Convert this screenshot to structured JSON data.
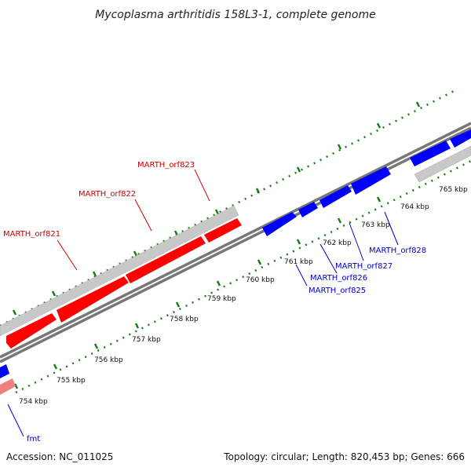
{
  "title": "Mycoplasma arthritidis 158L3-1, complete genome",
  "footer": {
    "accession": "Accession: NC_011025",
    "summary": "Topology: circular; Length: 820,453 bp; Genes: 666"
  },
  "colors": {
    "backbone": "#777777",
    "ticks": "#1a7a1a",
    "gene_red": "#ff0000",
    "gene_blue": "#0000ff",
    "gene_gray": "#c8c8c8",
    "gene_pink": "#f08080",
    "label_red": "#cc0000",
    "label_blue": "#0000cc"
  },
  "kbp_labels": [
    "754 kbp",
    "755 kbp",
    "756 kbp",
    "757 kbp",
    "758 kbp",
    "759 kbp",
    "760 kbp",
    "761 kbp",
    "762 kbp",
    "763 kbp",
    "764 kbp",
    "765 kbp"
  ],
  "gene_labels": {
    "orf821": "MARTH_orf821",
    "orf822": "MARTH_orf822",
    "orf823": "MARTH_orf823",
    "orf825": "MARTH_orf825",
    "orf826": "MARTH_orf826",
    "orf827": "MARTH_orf827",
    "orf828": "MARTH_orf828",
    "fmt": "fmt"
  }
}
